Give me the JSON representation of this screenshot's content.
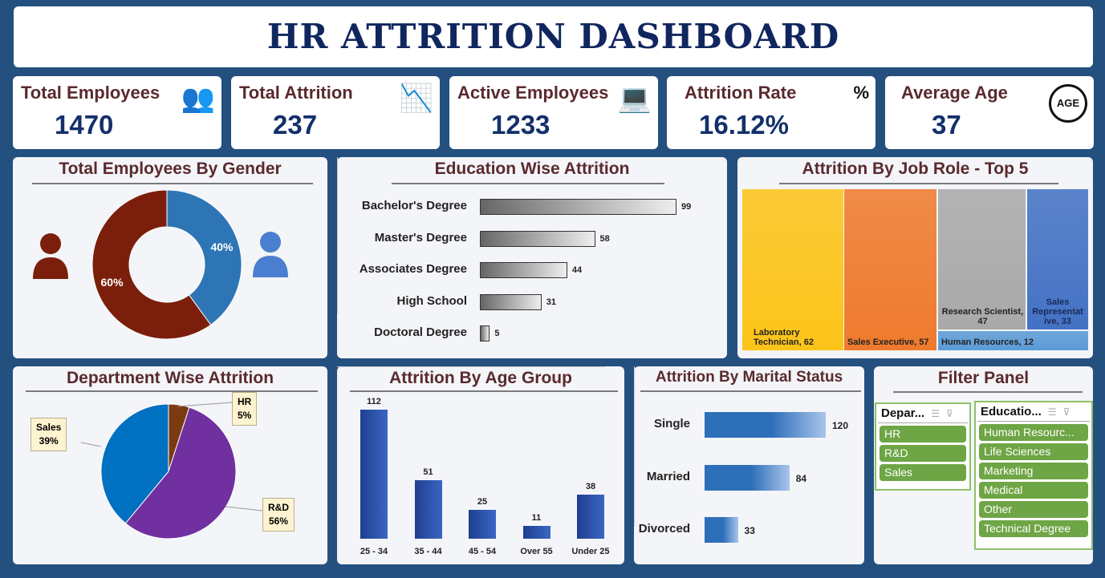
{
  "title": "HR ATTRITION DASHBOARD",
  "kpis": [
    {
      "label": "Total Employees",
      "value": "1470",
      "icon": "people-group-icon",
      "glyph": "👥"
    },
    {
      "label": "Total Attrition",
      "value": "237",
      "icon": "people-decline-icon",
      "glyph": "📉"
    },
    {
      "label": "Active Employees",
      "value": "1233",
      "icon": "person-at-desk-icon",
      "glyph": "💻"
    },
    {
      "label": "Attrition Rate",
      "value": "16.12%",
      "icon": "person-percent-icon",
      "glyph": "%"
    },
    {
      "label": "Average Age",
      "value": "37",
      "icon": "age-cycle-icon",
      "glyph": "AGE"
    }
  ],
  "gender": {
    "title": "Total Employees By Gender",
    "slices": [
      {
        "name": "Female",
        "percent": 40,
        "label": "40%",
        "color": "#2e75b6"
      },
      {
        "name": "Male",
        "percent": 60,
        "label": "60%",
        "color": "#7b1f0c"
      }
    ]
  },
  "education": {
    "title": "Education Wise Attrition",
    "categories": [
      "Bachelor's Degree",
      "Master's Degree",
      "Associates Degree",
      "High School",
      "Doctoral Degree"
    ],
    "values": [
      99,
      58,
      44,
      31,
      5
    ]
  },
  "job_role": {
    "title": "Attrition By Job Role - Top 5",
    "items": [
      {
        "label": "Laboratory Technician, 62",
        "value": 62,
        "color": "#fcc419"
      },
      {
        "label": "Sales Executive, 57",
        "value": 57,
        "color": "#ef7a2d"
      },
      {
        "label": "Research Scientist, 47",
        "value": 47,
        "color": "#a9a9a9"
      },
      {
        "label": "Sales Representat ive, 33",
        "value": 33,
        "color": "#4472c4"
      },
      {
        "label": "Human Resources, 12",
        "value": 12,
        "color": "#5b9bd5"
      }
    ]
  },
  "department": {
    "title": "Department Wise Attrition",
    "slices": [
      {
        "name": "HR",
        "percent": 5,
        "label": "5%",
        "color": "#7b3a10"
      },
      {
        "name": "R&D",
        "percent": 56,
        "label": "56%",
        "color": "#7030a0"
      },
      {
        "name": "Sales",
        "percent": 39,
        "label": "39%",
        "color": "#0070c0"
      }
    ]
  },
  "age_group": {
    "title": "Attrition By Age Group",
    "categories": [
      "25 - 34",
      "35 - 44",
      "45 - 54",
      "Over 55",
      "Under 25"
    ],
    "values": [
      112,
      51,
      25,
      11,
      38
    ]
  },
  "marital": {
    "title": "Attrition By Marital Status",
    "categories": [
      "Single",
      "Married",
      "Divorced"
    ],
    "values": [
      120,
      84,
      33
    ]
  },
  "filter": {
    "title": "Filter Panel",
    "department": {
      "header": "Depar...",
      "items": [
        "HR",
        "R&D",
        "Sales"
      ]
    },
    "education": {
      "header": "Educatio...",
      "items": [
        "Human Resourc...",
        "Life Sciences",
        "Marketing",
        "Medical",
        "Other",
        "Technical Degree"
      ]
    }
  }
}
